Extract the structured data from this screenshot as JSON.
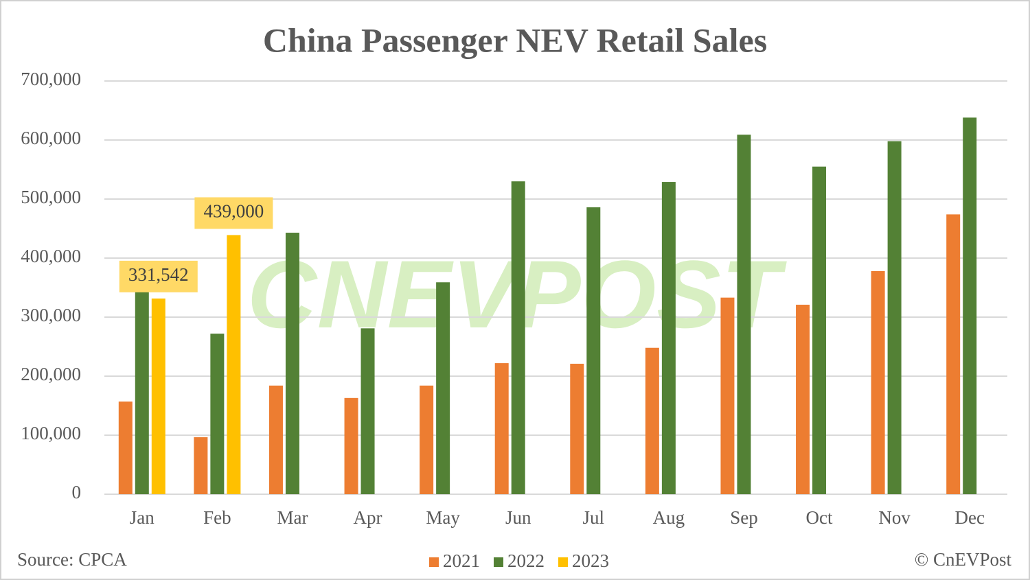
{
  "chart_data": {
    "type": "bar",
    "title": "China Passenger NEV Retail Sales",
    "source": "Source: CPCA",
    "credit": "© CnEVPost",
    "watermark": "CNEVPOST",
    "categories": [
      "Jan",
      "Feb",
      "Mar",
      "Apr",
      "May",
      "Jun",
      "Jul",
      "Aug",
      "Sep",
      "Oct",
      "Nov",
      "Dec"
    ],
    "series": [
      {
        "name": "2021",
        "color": "#ed7d31",
        "values": [
          157000,
          96500,
          184000,
          163000,
          184000,
          222000,
          221000,
          248000,
          333000,
          321000,
          378000,
          474000
        ]
      },
      {
        "name": "2022",
        "color": "#538135",
        "values": [
          347000,
          272000,
          443000,
          281000,
          359000,
          530000,
          486000,
          529000,
          609000,
          555000,
          598000,
          638000
        ]
      },
      {
        "name": "2023",
        "color": "#ffc000",
        "values": [
          331542,
          439000,
          null,
          null,
          null,
          null,
          null,
          null,
          null,
          null,
          null,
          null
        ],
        "value_labels": [
          "331,542",
          "439,000",
          null,
          null,
          null,
          null,
          null,
          null,
          null,
          null,
          null,
          null
        ]
      }
    ],
    "ylim": [
      0,
      700000
    ],
    "yticks": [
      0,
      {
        "value": 100000,
        "label": "100,000"
      },
      {
        "value": 200000,
        "label": "200,000"
      },
      {
        "value": 300000,
        "label": "300,000"
      },
      {
        "value": 400000,
        "label": "400,000"
      },
      {
        "value": 500000,
        "label": "500,000"
      },
      {
        "value": 600000,
        "label": "600,000"
      },
      {
        "value": 700000,
        "label": "700,000"
      }
    ],
    "grid": true,
    "legend": "bottom"
  }
}
